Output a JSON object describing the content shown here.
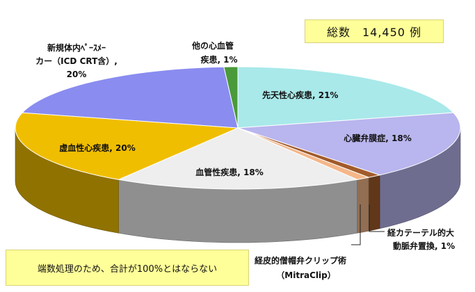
{
  "chart_data": {
    "type": "pie",
    "style": "3d",
    "slices": [
      {
        "label": "先天性心疾患, 21%",
        "value": 21,
        "color": "#a9e9ea"
      },
      {
        "label": "心臓弁膜症, 18%",
        "value": 18,
        "color": "#b9b5ee"
      },
      {
        "label": "経カテーテル的大動脈弁置換, 1%",
        "value": 1,
        "color": "#a25b2a"
      },
      {
        "label": "経皮的僧帽弁クリップ術（MitraClip）",
        "value": 1,
        "color": "#f4b78a"
      },
      {
        "label": "血管性疾患, 18%",
        "value": 18,
        "color": "#eeeeee"
      },
      {
        "label": "虚血性心疾患, 20%",
        "value": 20,
        "color": "#f0be00"
      },
      {
        "label": "新規体内ﾍﾟｰｽﾒｰｶｰ（ICD CRT含）, 20%",
        "value": 20,
        "color": "#8a8cf0"
      },
      {
        "label": "他の心血管疾患, 1%",
        "value": 1,
        "color": "#4a9a3a"
      }
    ]
  },
  "labels": {
    "congenital": "先天性心疾患, 21%",
    "valvular": "心臓弁膜症, 18%",
    "tavi_1": "経カテーテル的大",
    "tavi_2": "動脈弁置換, 1%",
    "mitraclip_1": "経皮的僧帽弁クリップ術",
    "mitraclip_2": "（MitraClip）",
    "vascular": "血管性疾患, 18%",
    "ischemic": "虚血性心疾患, 20%",
    "pacemaker_1": "新規体内ﾍﾟｰｽﾒｰ",
    "pacemaker_2": "カー（ICD CRT含）,",
    "pacemaker_3": "20%",
    "other_1": "他の心血管",
    "other_2": "疾患, 1%"
  },
  "total": "総数　14,450 例",
  "note": "端数処理のため、合計が100%とはならない"
}
